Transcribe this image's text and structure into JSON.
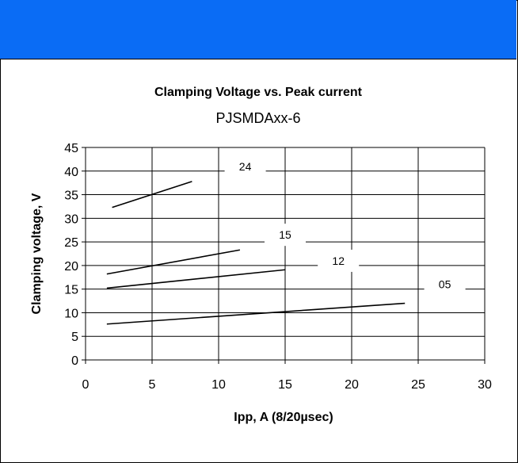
{
  "chart_data": {
    "type": "line",
    "title": "Clamping Voltage vs. Peak current",
    "subtitle": "PJSMDAxx-6",
    "xlabel": "Ipp, A (8/20µsec)",
    "ylabel": "Clamping voltage, V",
    "xlim": [
      0,
      30
    ],
    "ylim": [
      0,
      45
    ],
    "xticks": [
      0,
      5,
      10,
      15,
      20,
      25,
      30
    ],
    "yticks": [
      0,
      5,
      10,
      15,
      20,
      25,
      30,
      35,
      40,
      45
    ],
    "grid": true,
    "series": [
      {
        "name": "24",
        "x": [
          2,
          8
        ],
        "y": [
          32.3,
          37.8
        ],
        "label_at": [
          12,
          41
        ]
      },
      {
        "name": "15",
        "x": [
          1.6,
          11.6
        ],
        "y": [
          18.2,
          23.3
        ],
        "label_at": [
          15,
          26.5
        ]
      },
      {
        "name": "12",
        "x": [
          1.6,
          15
        ],
        "y": [
          15.2,
          19.1
        ],
        "label_at": [
          19,
          21
        ]
      },
      {
        "name": "05",
        "x": [
          1.6,
          24
        ],
        "y": [
          7.6,
          12.0
        ],
        "label_at": [
          27,
          16
        ]
      }
    ]
  }
}
